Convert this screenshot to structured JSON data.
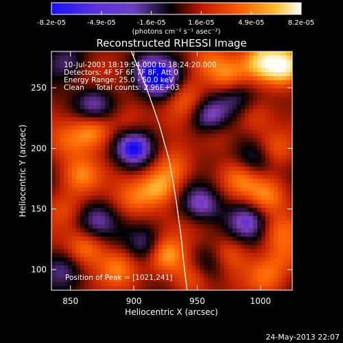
{
  "chart_data": {
    "type": "heatmap",
    "title": "Reconstructed RHESSI Image",
    "xlabel": "Heliocentric X (arcsec)",
    "ylabel": "Heliocentric Y (arcsec)",
    "xlim": [
      835,
      1025
    ],
    "ylim": [
      83,
      280
    ],
    "x_ticks": [
      850,
      900,
      950,
      1000
    ],
    "y_ticks": [
      100,
      150,
      200,
      250
    ],
    "colorbar": {
      "range": [
        -8.2e-05,
        8.2e-05
      ],
      "tick_labels": [
        "-8.2e-05",
        "-4.9e-05",
        "-1.6e-05",
        "1.6e-05",
        "4.9e-05",
        "8.2e-05"
      ],
      "units": "(photons cm⁻² s⁻¹ asec⁻²)",
      "colors": [
        "#0000ff",
        "#8040c0",
        "#000000",
        "#c02000",
        "#ff6000",
        "#ffd040",
        "#ffffff"
      ]
    },
    "annotations": [
      "10-Jul-2003 18:19:54.000 to 18:24:20.000",
      "Detectors: 4F 5F 6F 7F 8F, Att 0",
      "Energy Range: 25.0 - 50.0 keV",
      "Clean     Total counts: 2.96E+03"
    ],
    "peak_label": "Position of Peak = [1021,241]",
    "peak_position": [
      1021,
      241
    ],
    "blobs": [
      {
        "x": 1020,
        "y": 268,
        "v": 8.2e-05
      },
      {
        "x": 1002,
        "y": 272,
        "v": 6e-05
      },
      {
        "x": 975,
        "y": 258,
        "v": 4.5e-05
      },
      {
        "x": 958,
        "y": 272,
        "v": 3.5e-05
      },
      {
        "x": 938,
        "y": 250,
        "v": 2.5e-05
      },
      {
        "x": 905,
        "y": 258,
        "v": 2e-05
      },
      {
        "x": 858,
        "y": 262,
        "v": 1.8e-05
      },
      {
        "x": 868,
        "y": 215,
        "v": 5.5e-05
      },
      {
        "x": 848,
        "y": 205,
        "v": 3e-05
      },
      {
        "x": 895,
        "y": 222,
        "v": 2.5e-05
      },
      {
        "x": 940,
        "y": 238,
        "v": 2.5e-05
      },
      {
        "x": 965,
        "y": 215,
        "v": 3e-05
      },
      {
        "x": 995,
        "y": 225,
        "v": 3e-05
      },
      {
        "x": 1012,
        "y": 200,
        "v": 3.5e-05
      },
      {
        "x": 932,
        "y": 185,
        "v": 4e-05
      },
      {
        "x": 920,
        "y": 168,
        "v": 5.5e-05
      },
      {
        "x": 985,
        "y": 175,
        "v": 4e-05
      },
      {
        "x": 1005,
        "y": 160,
        "v": 4.5e-05
      },
      {
        "x": 858,
        "y": 178,
        "v": 4.5e-05
      },
      {
        "x": 900,
        "y": 158,
        "v": 3.5e-05
      },
      {
        "x": 845,
        "y": 150,
        "v": 2.5e-05
      },
      {
        "x": 1015,
        "y": 132,
        "v": 3.5e-05
      },
      {
        "x": 950,
        "y": 145,
        "v": 2.5e-05
      },
      {
        "x": 925,
        "y": 112,
        "v": 6e-05
      },
      {
        "x": 862,
        "y": 118,
        "v": 4.5e-05
      },
      {
        "x": 888,
        "y": 102,
        "v": 4e-05
      },
      {
        "x": 975,
        "y": 112,
        "v": 3.5e-05
      },
      {
        "x": 945,
        "y": 92,
        "v": 4e-05
      },
      {
        "x": 1005,
        "y": 95,
        "v": 3.5e-05
      },
      {
        "x": 1020,
        "y": 112,
        "v": 2.5e-05
      },
      {
        "x": 910,
        "y": 262,
        "v": -6.5e-05
      },
      {
        "x": 925,
        "y": 255,
        "v": -5.5e-05
      },
      {
        "x": 960,
        "y": 225,
        "v": -6e-05
      },
      {
        "x": 900,
        "y": 200,
        "v": -7e-05
      },
      {
        "x": 868,
        "y": 235,
        "v": -4.5e-05
      },
      {
        "x": 952,
        "y": 152,
        "v": -6.5e-05
      },
      {
        "x": 990,
        "y": 140,
        "v": -4.5e-05
      },
      {
        "x": 995,
        "y": 190,
        "v": -4e-05
      },
      {
        "x": 980,
        "y": 245,
        "v": -4e-05
      },
      {
        "x": 910,
        "y": 120,
        "v": -4e-05
      },
      {
        "x": 870,
        "y": 140,
        "v": -3.5e-05
      },
      {
        "x": 845,
        "y": 100,
        "v": -3e-05
      },
      {
        "x": 960,
        "y": 105,
        "v": -3e-05
      },
      {
        "x": 850,
        "y": 270,
        "v": -3.5e-05
      }
    ],
    "limb_curve": [
      [
        898,
        280
      ],
      [
        910,
        250
      ],
      [
        920,
        220
      ],
      [
        928,
        190
      ],
      [
        933,
        160
      ],
      [
        937,
        130
      ],
      [
        940,
        100
      ],
      [
        942,
        83
      ]
    ]
  },
  "timestamp": "24-May-2013 22:07"
}
